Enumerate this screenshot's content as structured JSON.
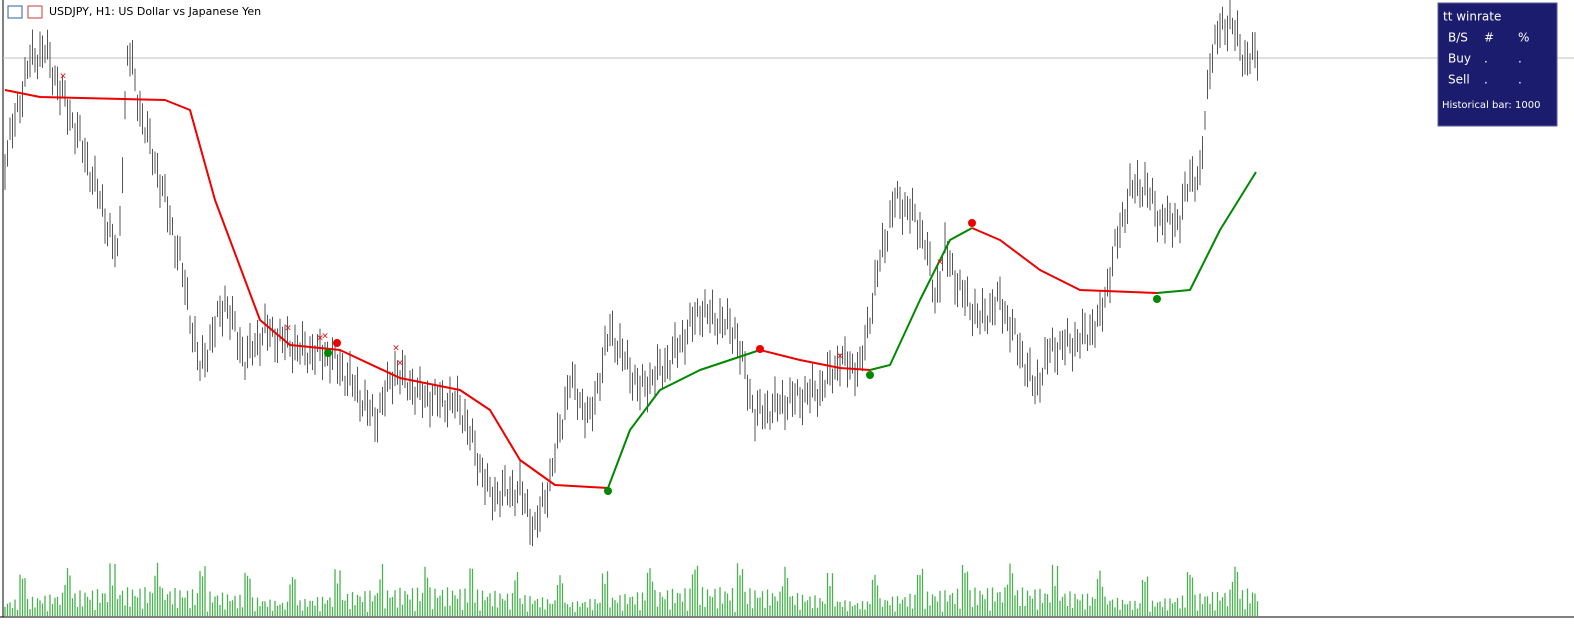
{
  "header": {
    "title": "USDJPY, H1:  US Dollar vs Japanese Yen"
  },
  "panel": {
    "title": "tt winrate",
    "columns": [
      "B/S",
      "#",
      "%"
    ],
    "rows": [
      [
        "Buy",
        ".",
        "."
      ],
      [
        "Sell",
        ".",
        "."
      ]
    ],
    "footer": "Historical bar: 1000"
  }
}
